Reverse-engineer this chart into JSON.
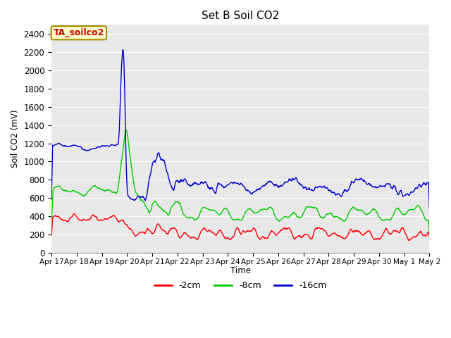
{
  "title": "Set B Soil CO2",
  "ylabel": "Soil CO2 (mV)",
  "xlabel": "Time",
  "annotation": "TA_soilco2",
  "annotation_bg": "#ffffcc",
  "annotation_border": "#aa8800",
  "annotation_text_color": "#cc0000",
  "x_tick_labels": [
    "Apr 17",
    "Apr 18",
    "Apr 19",
    "Apr 20",
    "Apr 21",
    "Apr 22",
    "Apr 23",
    "Apr 24",
    "Apr 25",
    "Apr 26",
    "Apr 27",
    "Apr 28",
    "Apr 29",
    "Apr 30",
    "May 1",
    "May 2"
  ],
  "ylim": [
    0,
    2500
  ],
  "yticks": [
    0,
    200,
    400,
    600,
    800,
    1000,
    1200,
    1400,
    1600,
    1800,
    2000,
    2200,
    2400
  ],
  "colors": {
    "red": "#ff0000",
    "green": "#00cc00",
    "blue": "#0000cc"
  },
  "legend_labels": [
    "-2cm",
    "-8cm",
    "-16cm"
  ],
  "bg_color": "#e8e8e8",
  "line_width": 1.0,
  "figsize": [
    6.4,
    4.8
  ],
  "dpi": 100
}
